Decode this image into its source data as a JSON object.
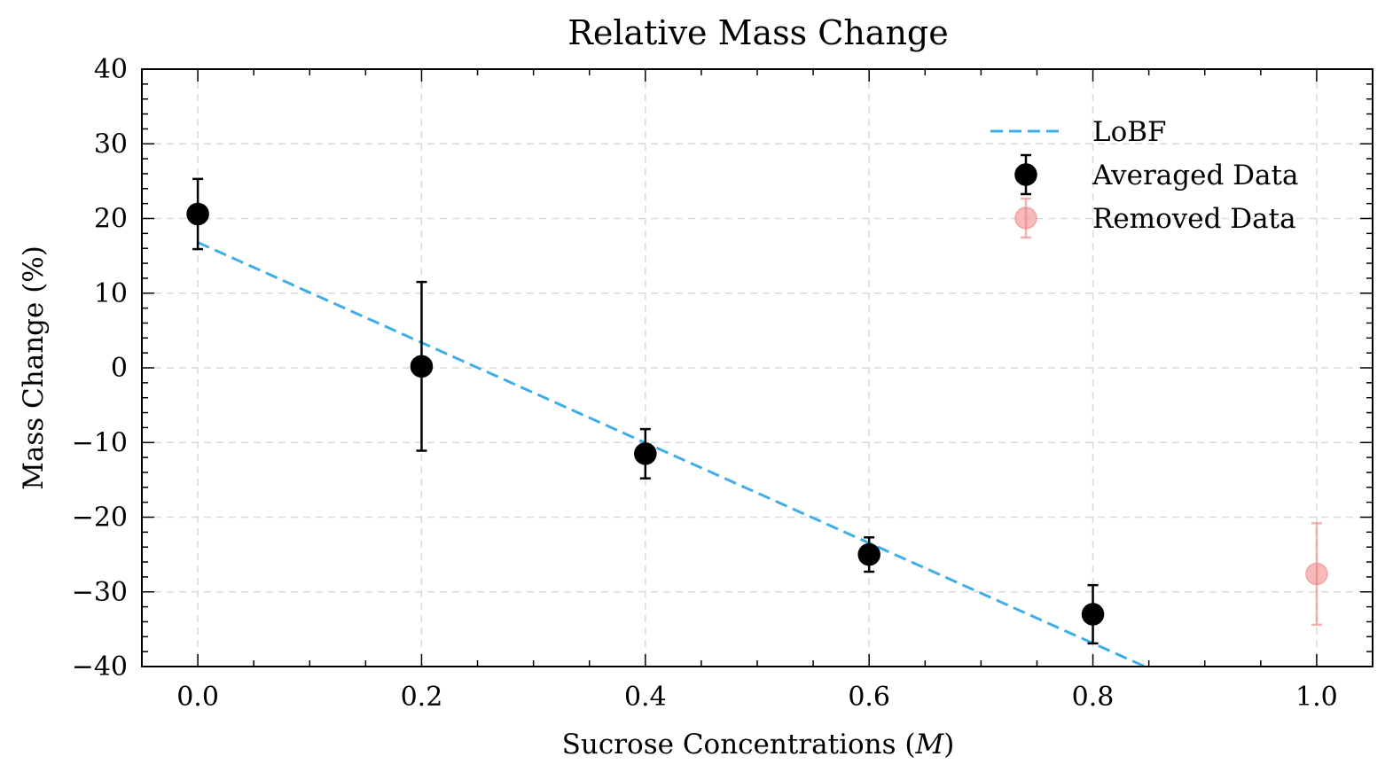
{
  "chart_data": {
    "type": "scatter",
    "title": "Relative Mass Change",
    "xlabel_main": "Sucrose Concentrations (",
    "xlabel_unit": "M",
    "xlabel_close": ")",
    "ylabel": "Mass Change (%)",
    "xlim": [
      -0.05,
      1.05
    ],
    "ylim": [
      -40,
      40
    ],
    "xticks": [
      0.0,
      0.2,
      0.4,
      0.6,
      0.8,
      1.0
    ],
    "xtick_labels": [
      "0.0",
      "0.2",
      "0.4",
      "0.6",
      "0.8",
      "1.0"
    ],
    "yticks": [
      -40,
      -30,
      -20,
      -10,
      0,
      10,
      20,
      30,
      40
    ],
    "ytick_labels": [
      "−40",
      "−30",
      "−20",
      "−10",
      "0",
      "10",
      "20",
      "30",
      "40"
    ],
    "grid": true,
    "legend_position": "top-right",
    "series": [
      {
        "name": "LoBF",
        "kind": "line",
        "style": "dashed",
        "color": "#3daee9",
        "x": [
          0.0,
          1.0
        ],
        "y": [
          16.8,
          -50.3
        ]
      },
      {
        "name": "Averaged Data",
        "kind": "errorbar",
        "color": "#000000",
        "x": [
          0.0,
          0.2,
          0.4,
          0.6,
          0.8
        ],
        "y": [
          20.6,
          0.2,
          -11.5,
          -25.0,
          -33.0
        ],
        "yerr": [
          4.7,
          11.3,
          3.3,
          2.3,
          3.9
        ]
      },
      {
        "name": "Removed Data",
        "kind": "errorbar",
        "color": "#f08080",
        "x": [
          1.0
        ],
        "y": [
          -27.6
        ],
        "yerr": [
          6.8
        ]
      }
    ]
  }
}
